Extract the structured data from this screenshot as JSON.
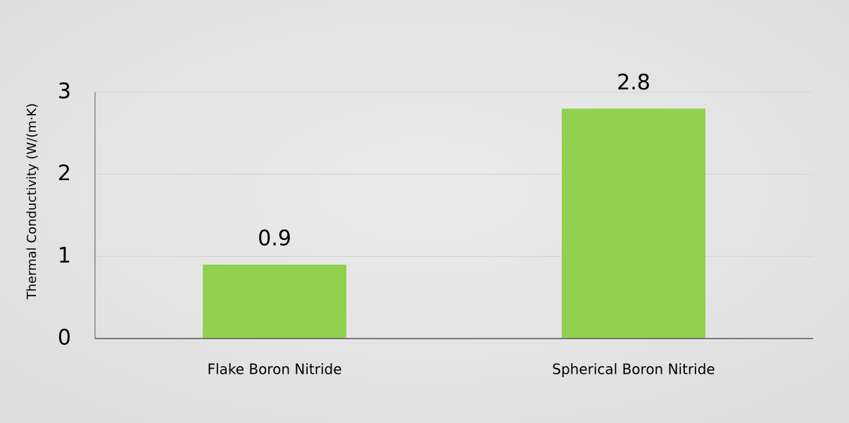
{
  "chart_data": {
    "type": "bar",
    "y_label": "Thermal Conductivity  (W/(m·K)",
    "categories": [
      "Flake Boron Nitride",
      "Spherical Boron Nitride"
    ],
    "values": [
      0.9,
      2.8
    ],
    "color": "#92d050",
    "ylim": [
      0,
      3
    ],
    "yticks": [
      0,
      1,
      2,
      3
    ],
    "grid": true
  }
}
